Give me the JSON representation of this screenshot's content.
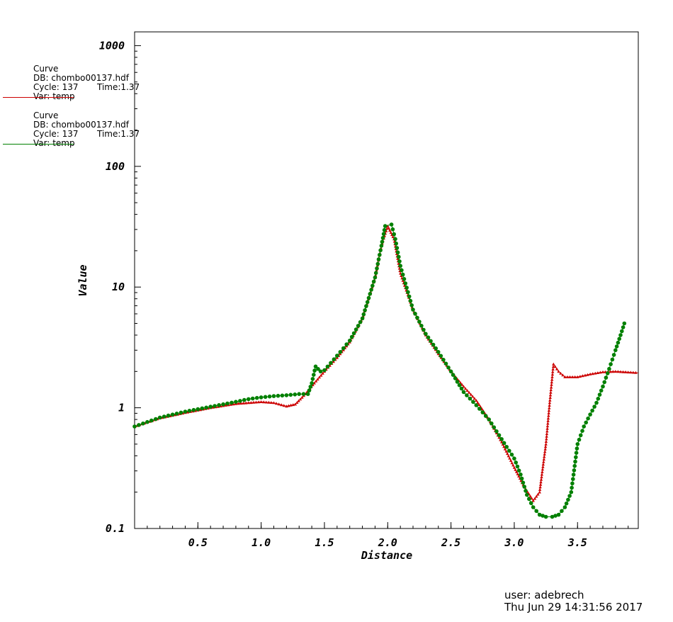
{
  "chart_data": {
    "type": "line",
    "xlabel": "Distance",
    "ylabel": "Value",
    "xlim": [
      0.0,
      3.98
    ],
    "ylim": [
      0.1,
      1300
    ],
    "yscale": "log",
    "xticks": [
      0.5,
      1.0,
      1.5,
      2.0,
      2.5,
      3.0,
      3.5
    ],
    "xtick_labels": [
      "0.5",
      "1.0",
      "1.5",
      "2.0",
      "2.5",
      "3.0",
      "3.5"
    ],
    "xminor_step": 0.1,
    "yticks": [
      0.1,
      1,
      10,
      100,
      1000
    ],
    "ytick_labels": [
      "0.1",
      "1",
      "10",
      "100",
      "1000"
    ],
    "grid": false,
    "series": [
      {
        "name": "temp",
        "color": "#cc0000",
        "marker": "triangle",
        "points": [
          [
            0.0,
            0.7
          ],
          [
            0.2,
            0.82
          ],
          [
            0.4,
            0.91
          ],
          [
            0.6,
            1.0
          ],
          [
            0.8,
            1.08
          ],
          [
            1.0,
            1.12
          ],
          [
            1.1,
            1.1
          ],
          [
            1.2,
            1.03
          ],
          [
            1.27,
            1.07
          ],
          [
            1.35,
            1.3
          ],
          [
            1.42,
            1.6
          ],
          [
            1.5,
            2.0
          ],
          [
            1.6,
            2.6
          ],
          [
            1.7,
            3.5
          ],
          [
            1.8,
            5.5
          ],
          [
            1.9,
            12
          ],
          [
            1.95,
            22
          ],
          [
            2.0,
            32
          ],
          [
            2.05,
            25
          ],
          [
            2.1,
            13
          ],
          [
            2.2,
            6.5
          ],
          [
            2.3,
            4.0
          ],
          [
            2.4,
            2.8
          ],
          [
            2.5,
            2.0
          ],
          [
            2.6,
            1.5
          ],
          [
            2.7,
            1.15
          ],
          [
            2.8,
            0.8
          ],
          [
            2.9,
            0.52
          ],
          [
            3.0,
            0.32
          ],
          [
            3.08,
            0.22
          ],
          [
            3.15,
            0.17
          ],
          [
            3.2,
            0.2
          ],
          [
            3.25,
            0.5
          ],
          [
            3.28,
            1.1
          ],
          [
            3.31,
            2.3
          ],
          [
            3.35,
            2.0
          ],
          [
            3.4,
            1.8
          ],
          [
            3.5,
            1.8
          ],
          [
            3.6,
            1.9
          ],
          [
            3.7,
            1.98
          ],
          [
            3.8,
            2.0
          ],
          [
            3.98,
            1.95
          ]
        ]
      },
      {
        "name": "temp",
        "color": "#008000",
        "marker": "circle",
        "points": [
          [
            0.0,
            0.7
          ],
          [
            0.2,
            0.83
          ],
          [
            0.4,
            0.93
          ],
          [
            0.6,
            1.02
          ],
          [
            0.8,
            1.12
          ],
          [
            0.9,
            1.18
          ],
          [
            1.0,
            1.22
          ],
          [
            1.1,
            1.25
          ],
          [
            1.2,
            1.27
          ],
          [
            1.3,
            1.3
          ],
          [
            1.37,
            1.3
          ],
          [
            1.4,
            1.6
          ],
          [
            1.43,
            2.2
          ],
          [
            1.47,
            2.0
          ],
          [
            1.5,
            2.05
          ],
          [
            1.6,
            2.7
          ],
          [
            1.7,
            3.6
          ],
          [
            1.8,
            5.5
          ],
          [
            1.9,
            12
          ],
          [
            1.95,
            22
          ],
          [
            1.98,
            32
          ],
          [
            2.03,
            33
          ],
          [
            2.06,
            25
          ],
          [
            2.1,
            15
          ],
          [
            2.2,
            6.5
          ],
          [
            2.3,
            4.1
          ],
          [
            2.4,
            2.9
          ],
          [
            2.5,
            2.0
          ],
          [
            2.6,
            1.35
          ],
          [
            2.7,
            1.05
          ],
          [
            2.8,
            0.8
          ],
          [
            2.9,
            0.55
          ],
          [
            3.0,
            0.38
          ],
          [
            3.05,
            0.28
          ],
          [
            3.1,
            0.19
          ],
          [
            3.15,
            0.15
          ],
          [
            3.2,
            0.13
          ],
          [
            3.25,
            0.125
          ],
          [
            3.3,
            0.125
          ],
          [
            3.35,
            0.13
          ],
          [
            3.4,
            0.15
          ],
          [
            3.45,
            0.2
          ],
          [
            3.5,
            0.5
          ],
          [
            3.55,
            0.7
          ],
          [
            3.6,
            0.88
          ],
          [
            3.65,
            1.1
          ],
          [
            3.7,
            1.5
          ],
          [
            3.75,
            2.1
          ],
          [
            3.8,
            3.0
          ],
          [
            3.84,
            4.0
          ],
          [
            3.87,
            5.0
          ]
        ]
      }
    ]
  },
  "legend": [
    {
      "label": "Curve",
      "db": "DB: chombo00137.hdf",
      "cycle": "Cycle: 137",
      "time": "Time:1.37",
      "var": "Var: temp",
      "color": "#cc0000"
    },
    {
      "label": "Curve",
      "db": "DB: chombo00137.hdf",
      "cycle": "Cycle: 137",
      "time": "Time:1.37",
      "var": "Var: temp",
      "color": "#008000"
    }
  ],
  "footer": {
    "user": "user: adebrech",
    "date": "Thu Jun 29 14:31:56 2017"
  }
}
